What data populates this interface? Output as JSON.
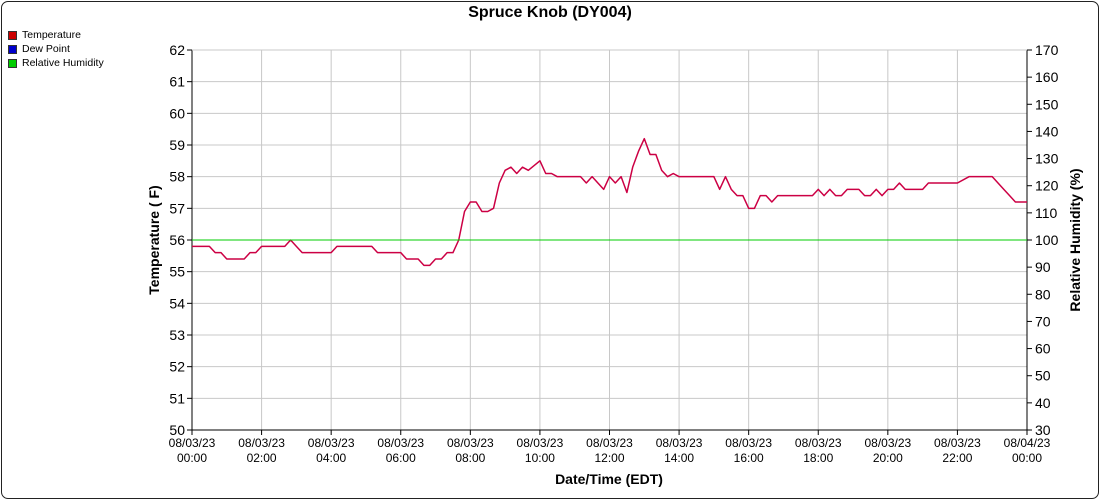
{
  "chart_data": {
    "type": "line",
    "title": "Spruce Knob (DY004)",
    "xlabel": "Date/Time (EDT)",
    "ylabel": "Temperature ( F)",
    "y2label": "Relative Humidity (%)",
    "ylim": [
      50,
      62
    ],
    "y2lim": [
      30,
      170
    ],
    "xlim_hours": [
      0,
      24
    ],
    "y_ticks": [
      "50",
      "51",
      "52",
      "53",
      "54",
      "55",
      "56",
      "57",
      "58",
      "59",
      "60",
      "61",
      "62"
    ],
    "y2_ticks": [
      "30",
      "40",
      "50",
      "60",
      "70",
      "80",
      "90",
      "100",
      "110",
      "120",
      "130",
      "140",
      "150",
      "160",
      "170"
    ],
    "x_tick_labels": [
      [
        "08/03/23",
        "00:00"
      ],
      [
        "08/03/23",
        "02:00"
      ],
      [
        "08/03/23",
        "04:00"
      ],
      [
        "08/03/23",
        "06:00"
      ],
      [
        "08/03/23",
        "08:00"
      ],
      [
        "08/03/23",
        "10:00"
      ],
      [
        "08/03/23",
        "12:00"
      ],
      [
        "08/03/23",
        "14:00"
      ],
      [
        "08/03/23",
        "16:00"
      ],
      [
        "08/03/23",
        "18:00"
      ],
      [
        "08/03/23",
        "20:00"
      ],
      [
        "08/03/23",
        "22:00"
      ],
      [
        "08/04/23",
        "00:00"
      ]
    ],
    "grid": true,
    "legend_position": "top-left",
    "legend": [
      {
        "name": "Temperature",
        "color": "#cc0000"
      },
      {
        "name": "Dew Point",
        "color": "#0000cc"
      },
      {
        "name": "Relative Humidity",
        "color": "#00cc00"
      }
    ],
    "series": [
      {
        "name": "Temperature",
        "color": "#cc0044",
        "axis": "left",
        "x": [
          "00:00",
          "00:30",
          "00:40",
          "00:50",
          "01:00",
          "01:10",
          "01:30",
          "01:40",
          "01:50",
          "02:00",
          "02:10",
          "02:30",
          "02:40",
          "02:50",
          "03:00",
          "03:10",
          "03:20",
          "03:40",
          "04:00",
          "04:10",
          "04:20",
          "04:40",
          "05:00",
          "05:10",
          "05:20",
          "05:40",
          "06:00",
          "06:10",
          "06:30",
          "06:40",
          "06:50",
          "07:00",
          "07:10",
          "07:20",
          "07:30",
          "07:40",
          "07:50",
          "08:00",
          "08:10",
          "08:20",
          "08:30",
          "08:40",
          "08:50",
          "09:00",
          "09:10",
          "09:20",
          "09:30",
          "09:40",
          "10:00",
          "10:10",
          "10:20",
          "10:30",
          "10:40",
          "10:50",
          "11:00",
          "11:10",
          "11:20",
          "11:30",
          "11:40",
          "11:50",
          "12:00",
          "12:10",
          "12:20",
          "12:30",
          "12:40",
          "12:50",
          "13:00",
          "13:10",
          "13:20",
          "13:30",
          "13:40",
          "13:50",
          "14:00",
          "14:10",
          "14:30",
          "14:50",
          "15:00",
          "15:10",
          "15:20",
          "15:30",
          "15:40",
          "15:50",
          "16:00",
          "16:10",
          "16:20",
          "16:30",
          "16:40",
          "16:50",
          "17:00",
          "17:10",
          "17:30",
          "17:50",
          "18:00",
          "18:10",
          "18:20",
          "18:30",
          "18:40",
          "18:50",
          "19:00",
          "19:10",
          "19:20",
          "19:30",
          "19:40",
          "19:50",
          "20:00",
          "20:10",
          "20:20",
          "20:30",
          "20:40",
          "20:50",
          "21:00",
          "21:10",
          "21:30",
          "21:50",
          "22:00",
          "22:20",
          "22:30",
          "22:50",
          "23:00",
          "23:10",
          "23:20",
          "23:30",
          "23:40",
          "23:50",
          "24:00"
        ],
        "values": [
          55.8,
          55.8,
          55.6,
          55.6,
          55.4,
          55.4,
          55.4,
          55.6,
          55.6,
          55.8,
          55.8,
          55.8,
          55.8,
          56.0,
          55.8,
          55.6,
          55.6,
          55.6,
          55.6,
          55.8,
          55.8,
          55.8,
          55.8,
          55.8,
          55.6,
          55.6,
          55.6,
          55.4,
          55.4,
          55.2,
          55.2,
          55.4,
          55.4,
          55.6,
          55.6,
          56.0,
          56.9,
          57.2,
          57.2,
          56.9,
          56.9,
          57.0,
          57.8,
          58.2,
          58.3,
          58.1,
          58.3,
          58.2,
          58.5,
          58.1,
          58.1,
          58.0,
          58.0,
          58.0,
          58.0,
          58.0,
          57.8,
          58.0,
          57.8,
          57.6,
          58.0,
          57.8,
          58.0,
          57.5,
          58.3,
          58.8,
          59.2,
          58.7,
          58.7,
          58.2,
          58.0,
          58.1,
          58.0,
          58.0,
          58.0,
          58.0,
          58.0,
          57.6,
          58.0,
          57.6,
          57.4,
          57.4,
          57.0,
          57.0,
          57.4,
          57.4,
          57.2,
          57.4,
          57.4,
          57.4,
          57.4,
          57.4,
          57.6,
          57.4,
          57.6,
          57.4,
          57.4,
          57.6,
          57.6,
          57.6,
          57.4,
          57.4,
          57.6,
          57.4,
          57.6,
          57.6,
          57.8,
          57.6,
          57.6,
          57.6,
          57.6,
          57.8,
          57.8,
          57.8,
          57.8,
          58.0,
          58.0,
          58.0,
          58.0,
          57.8,
          57.6,
          57.4,
          57.2,
          57.2,
          57.2
        ]
      },
      {
        "name": "Relative Humidity",
        "color": "#00cc00",
        "axis": "right",
        "x": [
          "00:00",
          "24:00"
        ],
        "values": [
          100,
          100
        ]
      }
    ]
  }
}
